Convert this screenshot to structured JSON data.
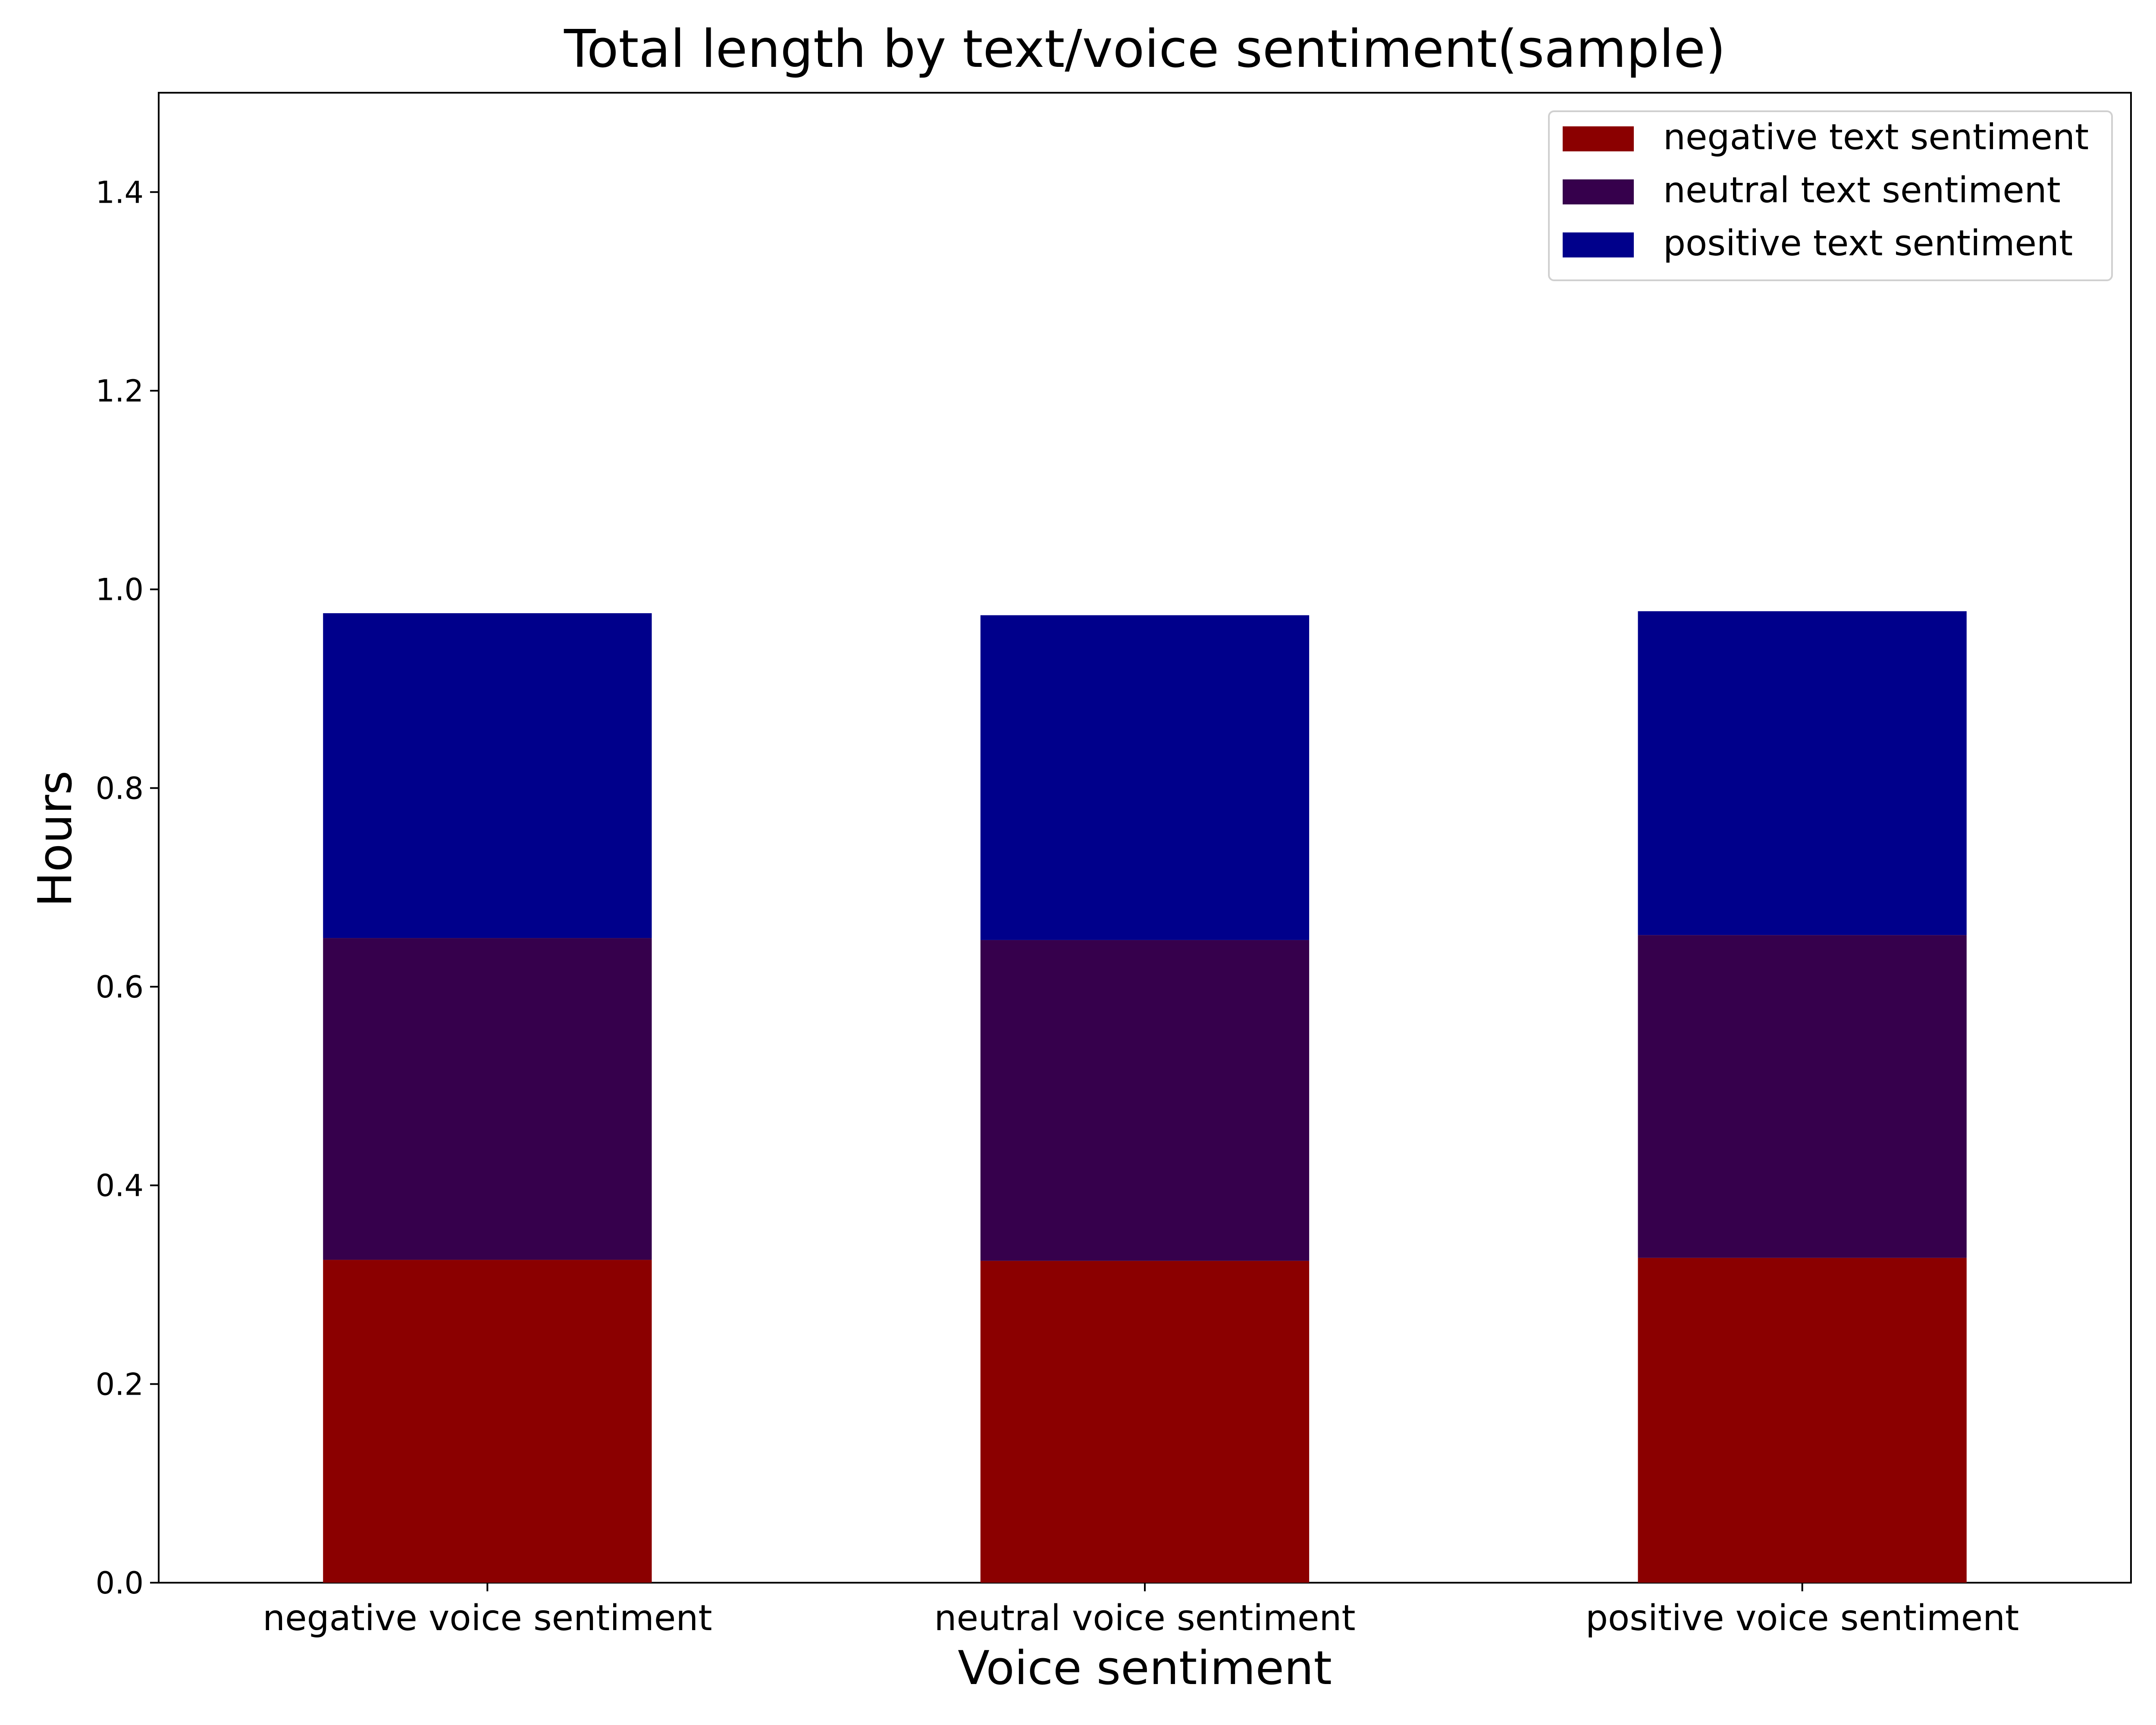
{
  "chart_data": {
    "type": "bar",
    "stacked": true,
    "title": "Total length by text/voice sentiment(sample)",
    "xlabel": "Voice sentiment",
    "ylabel": "Hours",
    "categories": [
      "negative voice sentiment",
      "neutral voice sentiment",
      "positive voice sentiment"
    ],
    "ylim": [
      0,
      1.5
    ],
    "yticks": [
      0.0,
      0.2,
      0.4,
      0.6,
      0.8,
      1.0,
      1.2,
      1.4
    ],
    "ytick_labels": [
      "0.0",
      "0.2",
      "0.4",
      "0.6",
      "0.8",
      "1.0",
      "1.2",
      "1.4"
    ],
    "series": [
      {
        "name": "negative text sentiment",
        "values": [
          0.325,
          0.324,
          0.327
        ],
        "color": "#8b0000"
      },
      {
        "name": "neutral text sentiment",
        "values": [
          0.324,
          0.323,
          0.325
        ],
        "color": "#36004c"
      },
      {
        "name": "positive text sentiment",
        "values": [
          0.327,
          0.327,
          0.326
        ],
        "color": "#00008b"
      }
    ],
    "legend": "top-right",
    "grid": false
  }
}
